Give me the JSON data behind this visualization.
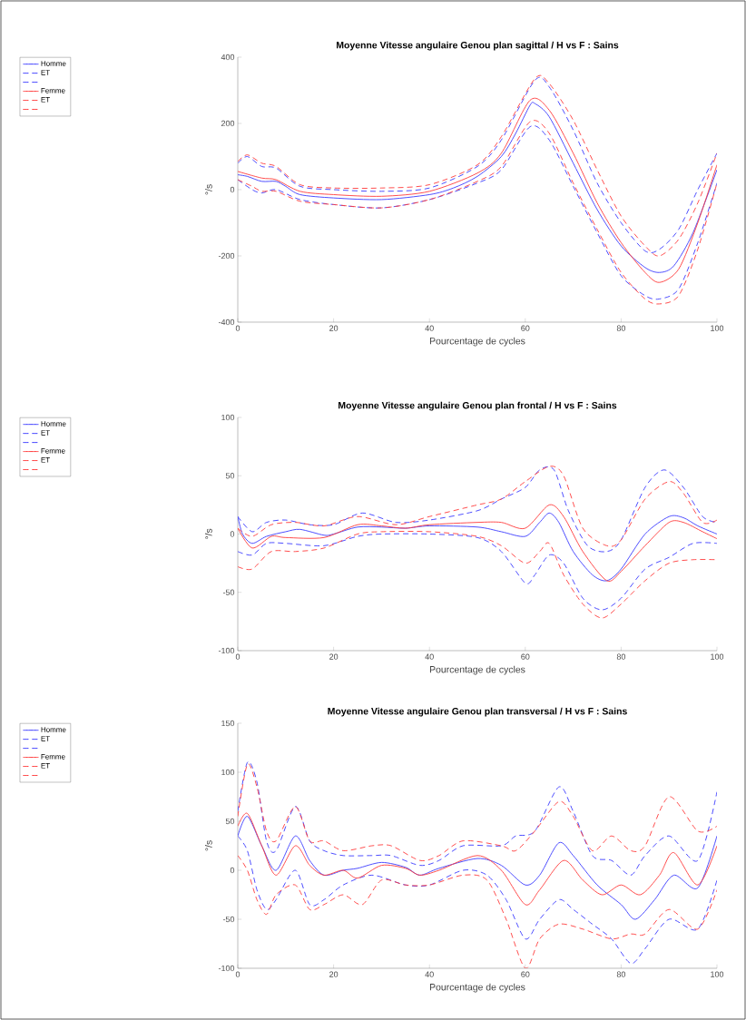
{
  "chart_data": [
    {
      "type": "line",
      "title": "Moyenne Vitesse angulaire Genou plan sagittal / H vs F : Sains",
      "xlabel": "Pourcentage de cycles",
      "ylabel": "°/s",
      "xlim": [
        0,
        100
      ],
      "ylim": [
        -400,
        400
      ],
      "xticks": [
        0,
        20,
        40,
        60,
        80,
        100
      ],
      "yticks": [
        -400,
        -200,
        0,
        200,
        400
      ],
      "legend": "left",
      "grid": false,
      "series": [
        {
          "name": "Homme",
          "color": "#3a3aff",
          "line_style": "solid",
          "x": [
            0,
            2,
            5,
            8,
            10,
            13,
            20,
            30,
            40,
            45,
            50,
            55,
            58,
            61,
            62,
            65,
            70,
            75,
            80,
            85,
            88,
            91,
            95,
            100
          ],
          "values": [
            45,
            40,
            25,
            25,
            10,
            -15,
            -25,
            -30,
            -15,
            5,
            40,
            100,
            170,
            255,
            260,
            220,
            80,
            -60,
            -170,
            -235,
            -250,
            -230,
            -130,
            60
          ]
        },
        {
          "name": "ET",
          "color": "#3a3aff",
          "line_style": "dashed",
          "x": [
            0,
            2,
            5,
            8,
            13,
            20,
            30,
            40,
            50,
            55,
            62,
            65,
            70,
            75,
            80,
            85,
            88,
            92,
            96,
            100
          ],
          "values": [
            80,
            100,
            70,
            65,
            10,
            0,
            -5,
            5,
            70,
            150,
            330,
            310,
            180,
            20,
            -100,
            -185,
            -180,
            -120,
            0,
            110
          ]
        },
        {
          "color": "#3a3aff",
          "line_style": "dashed",
          "x": [
            0,
            3,
            5,
            8,
            13,
            20,
            30,
            40,
            50,
            55,
            61,
            65,
            70,
            75,
            80,
            85,
            88,
            92,
            96,
            100
          ],
          "values": [
            30,
            0,
            -10,
            0,
            -30,
            -45,
            -55,
            -30,
            20,
            60,
            190,
            150,
            10,
            -130,
            -260,
            -320,
            -330,
            -300,
            -160,
            20
          ]
        },
        {
          "name": "Femme",
          "color": "#ff3a3a",
          "line_style": "solid",
          "x": [
            0,
            5,
            8,
            13,
            20,
            30,
            40,
            50,
            55,
            61,
            65,
            70,
            75,
            80,
            85,
            88,
            92,
            96,
            100
          ],
          "values": [
            55,
            35,
            30,
            -5,
            -15,
            -20,
            -5,
            50,
            110,
            270,
            240,
            110,
            -40,
            -160,
            -250,
            -280,
            -240,
            -100,
            75
          ]
        },
        {
          "name": "ET",
          "color": "#ff3a3a",
          "line_style": "dashed",
          "x": [
            0,
            2,
            5,
            8,
            13,
            20,
            30,
            40,
            50,
            55,
            62,
            65,
            70,
            75,
            80,
            85,
            88,
            92,
            96,
            100
          ],
          "values": [
            85,
            105,
            80,
            70,
            15,
            5,
            5,
            15,
            75,
            160,
            335,
            320,
            210,
            60,
            -80,
            -170,
            -200,
            -150,
            -40,
            110
          ]
        },
        {
          "color": "#ff3a3a",
          "line_style": "dashed",
          "x": [
            0,
            3,
            5,
            8,
            13,
            20,
            30,
            40,
            50,
            55,
            61,
            65,
            70,
            75,
            80,
            85,
            88,
            92,
            96,
            100
          ],
          "values": [
            30,
            10,
            -5,
            -5,
            -35,
            -45,
            -55,
            -30,
            25,
            70,
            205,
            170,
            20,
            -120,
            -250,
            -330,
            -345,
            -320,
            -180,
            20
          ]
        }
      ]
    },
    {
      "type": "line",
      "title": "Moyenne Vitesse angulaire Genou plan frontal / H vs F : Sains",
      "xlabel": "Pourcentage de cycles",
      "ylabel": "°/s",
      "xlim": [
        0,
        100
      ],
      "ylim": [
        -100,
        100
      ],
      "xticks": [
        0,
        20,
        40,
        60,
        80,
        100
      ],
      "yticks": [
        -100,
        -50,
        0,
        50,
        100
      ],
      "legend": "left",
      "grid": false,
      "series": [
        {
          "name": "Homme",
          "color": "#3a3aff",
          "line_style": "solid",
          "x": [
            0,
            1,
            3,
            6,
            10,
            13,
            18,
            20,
            25,
            30,
            35,
            40,
            50,
            55,
            60,
            63,
            65,
            67,
            70,
            74,
            77,
            80,
            85,
            90,
            93,
            96,
            100
          ],
          "values": [
            15,
            0,
            -8,
            -2,
            2,
            4,
            -1,
            0,
            6,
            6,
            5,
            7,
            6,
            2,
            -2,
            10,
            18,
            10,
            -15,
            -35,
            -40,
            -30,
            0,
            15,
            14,
            7,
            0
          ]
        },
        {
          "name": "ET",
          "color": "#3a3aff",
          "line_style": "dashed",
          "x": [
            0,
            3,
            6,
            10,
            15,
            20,
            26,
            33,
            40,
            50,
            55,
            60,
            63,
            66,
            69,
            73,
            77,
            80,
            85,
            89,
            93,
            97,
            100
          ],
          "values": [
            15,
            2,
            10,
            12,
            8,
            8,
            18,
            10,
            12,
            20,
            30,
            40,
            55,
            55,
            20,
            -10,
            -15,
            -5,
            40,
            55,
            40,
            15,
            10
          ]
        },
        {
          "color": "#3a3aff",
          "line_style": "dashed",
          "x": [
            0,
            3,
            6,
            10,
            18,
            25,
            30,
            40,
            50,
            55,
            60,
            62,
            65,
            68,
            72,
            76,
            80,
            85,
            90,
            95,
            100
          ],
          "values": [
            -15,
            -18,
            -8,
            -8,
            -10,
            -2,
            0,
            0,
            -3,
            -15,
            -42,
            -35,
            -18,
            -25,
            -55,
            -65,
            -55,
            -30,
            -20,
            -8,
            -8
          ]
        },
        {
          "name": "Femme",
          "color": "#ff3a3a",
          "line_style": "solid",
          "x": [
            0,
            3,
            7,
            10,
            18,
            25,
            30,
            35,
            40,
            50,
            55,
            60,
            65,
            68,
            72,
            77,
            80,
            85,
            90,
            93,
            97,
            100
          ],
          "values": [
            5,
            -12,
            -2,
            -3,
            -3,
            8,
            7,
            5,
            8,
            10,
            10,
            5,
            25,
            15,
            -15,
            -40,
            -32,
            -10,
            10,
            10,
            2,
            -4
          ]
        },
        {
          "name": "ET",
          "color": "#ff3a3a",
          "line_style": "dashed",
          "x": [
            0,
            3,
            7,
            12,
            18,
            25,
            33,
            40,
            50,
            55,
            60,
            65,
            68,
            72,
            77,
            80,
            85,
            90,
            93,
            97,
            100
          ],
          "values": [
            5,
            -2,
            8,
            10,
            7,
            15,
            8,
            15,
            25,
            30,
            45,
            58,
            50,
            5,
            -10,
            -5,
            30,
            45,
            35,
            10,
            12
          ]
        },
        {
          "color": "#ff3a3a",
          "line_style": "dashed",
          "x": [
            0,
            3,
            7,
            12,
            18,
            25,
            30,
            40,
            50,
            55,
            60,
            63,
            65,
            68,
            72,
            76,
            80,
            85,
            90,
            95,
            100
          ],
          "values": [
            -28,
            -30,
            -15,
            -15,
            -12,
            0,
            2,
            2,
            -2,
            -10,
            -25,
            -15,
            -8,
            -35,
            -60,
            -72,
            -60,
            -40,
            -25,
            -22,
            -22
          ]
        }
      ]
    },
    {
      "type": "line",
      "title": "Moyenne Vitesse angulaire Genou plan transversal / H vs F : Sains",
      "xlabel": "Pourcentage de cycles",
      "ylabel": "°/s",
      "xlim": [
        0,
        100
      ],
      "ylim": [
        -100,
        150
      ],
      "xticks": [
        0,
        20,
        40,
        60,
        80,
        100
      ],
      "yticks": [
        -100,
        -50,
        0,
        50,
        100,
        150
      ],
      "legend": "left",
      "grid": false,
      "series": [
        {
          "name": "Homme",
          "color": "#3a3aff",
          "line_style": "solid",
          "x": [
            0,
            2,
            5,
            8,
            12,
            15,
            18,
            22,
            25,
            30,
            35,
            38,
            42,
            50,
            55,
            60,
            63,
            67,
            70,
            75,
            80,
            83,
            87,
            91,
            96,
            100
          ],
          "values": [
            35,
            55,
            25,
            0,
            35,
            10,
            -5,
            0,
            2,
            8,
            3,
            -5,
            2,
            12,
            5,
            -15,
            -5,
            28,
            15,
            -15,
            -35,
            -50,
            -30,
            -5,
            -18,
            35
          ]
        },
        {
          "name": "ET",
          "color": "#3a3aff",
          "line_style": "dashed",
          "x": [
            0,
            2,
            4,
            6,
            8,
            12,
            15,
            18,
            22,
            28,
            32,
            38,
            42,
            47,
            55,
            58,
            62,
            67,
            70,
            74,
            78,
            82,
            85,
            90,
            96,
            100
          ],
          "values": [
            60,
            110,
            90,
            30,
            20,
            65,
            30,
            20,
            15,
            15,
            15,
            5,
            10,
            25,
            25,
            35,
            40,
            85,
            60,
            15,
            10,
            -5,
            15,
            35,
            10,
            80
          ]
        },
        {
          "color": "#3a3aff",
          "line_style": "dashed",
          "x": [
            0,
            2,
            4,
            6,
            8,
            12,
            15,
            18,
            22,
            28,
            35,
            40,
            47,
            52,
            56,
            60,
            63,
            67,
            70,
            74,
            78,
            82,
            85,
            90,
            96,
            100
          ],
          "values": [
            35,
            20,
            -20,
            -40,
            -30,
            0,
            -35,
            -30,
            -15,
            -5,
            -15,
            -15,
            0,
            -5,
            -30,
            -70,
            -50,
            -30,
            -40,
            -55,
            -70,
            -95,
            -80,
            -50,
            -60,
            -10
          ]
        },
        {
          "name": "Femme",
          "color": "#ff3a3a",
          "line_style": "solid",
          "x": [
            0,
            2,
            5,
            8,
            12,
            15,
            18,
            22,
            25,
            30,
            35,
            38,
            42,
            50,
            55,
            60,
            63,
            68,
            72,
            76,
            80,
            84,
            88,
            91,
            96,
            100
          ],
          "values": [
            45,
            58,
            25,
            -5,
            25,
            5,
            -5,
            0,
            -8,
            5,
            2,
            -5,
            0,
            15,
            0,
            -35,
            -20,
            10,
            -10,
            -25,
            -15,
            -25,
            -5,
            18,
            -15,
            25
          ]
        },
        {
          "name": "ET",
          "color": "#ff3a3a",
          "line_style": "dashed",
          "x": [
            0,
            2,
            4,
            6,
            8,
            12,
            15,
            18,
            22,
            28,
            32,
            38,
            42,
            47,
            55,
            58,
            62,
            67,
            70,
            74,
            78,
            82,
            85,
            90,
            96,
            100
          ],
          "values": [
            55,
            108,
            85,
            40,
            30,
            65,
            30,
            30,
            20,
            25,
            25,
            10,
            15,
            30,
            25,
            20,
            40,
            70,
            55,
            20,
            35,
            20,
            25,
            75,
            40,
            45
          ]
        },
        {
          "color": "#ff3a3a",
          "line_style": "dashed",
          "x": [
            0,
            2,
            4,
            6,
            8,
            12,
            15,
            18,
            22,
            26,
            30,
            35,
            40,
            47,
            52,
            56,
            60,
            63,
            67,
            72,
            78,
            82,
            85,
            90,
            96,
            100
          ],
          "values": [
            15,
            0,
            -30,
            -45,
            -25,
            -15,
            -40,
            -35,
            -25,
            -35,
            -10,
            -15,
            -15,
            -5,
            -10,
            -50,
            -100,
            -70,
            -55,
            -60,
            -70,
            -65,
            -65,
            -40,
            -60,
            -20
          ]
        }
      ]
    }
  ]
}
